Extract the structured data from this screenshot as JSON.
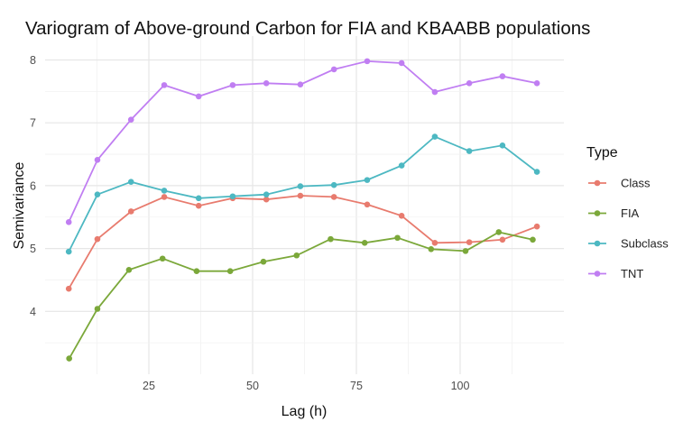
{
  "chart_data": {
    "type": "line",
    "title": "Variogram of Above-ground Carbon for FIA and KBAABB populations",
    "xlabel": "Lag (h)",
    "ylabel": "Semivariance",
    "xlim": [
      0,
      125
    ],
    "ylim": [
      3.0,
      8.38
    ],
    "xticks": [
      25,
      50,
      75,
      100
    ],
    "xtick_labels": [
      "25",
      "50",
      "75",
      "100"
    ],
    "yticks": [
      4,
      5,
      6,
      7,
      8
    ],
    "ytick_labels": [
      "4",
      "5",
      "6",
      "7",
      "8"
    ],
    "grid": true,
    "legend": {
      "title": "Type",
      "position": "right"
    },
    "series": [
      {
        "name": "Class",
        "color": "#E87B6E",
        "x": [
          5.7,
          12.6,
          20.7,
          28.7,
          37.0,
          45.2,
          53.3,
          61.5,
          69.6,
          77.6,
          85.9,
          93.9,
          102.2,
          110.2,
          118.5
        ],
        "y": [
          4.36,
          5.15,
          5.59,
          5.82,
          5.68,
          5.8,
          5.78,
          5.84,
          5.82,
          5.7,
          5.52,
          5.09,
          5.1,
          5.14,
          5.35
        ]
      },
      {
        "name": "FIA",
        "color": "#7BA83A",
        "x": [
          5.8,
          12.6,
          20.2,
          28.3,
          36.5,
          44.6,
          52.6,
          60.6,
          68.8,
          77.0,
          84.9,
          93.0,
          101.3,
          109.3,
          117.5
        ],
        "y": [
          3.25,
          4.04,
          4.66,
          4.84,
          4.64,
          4.64,
          4.79,
          4.89,
          5.15,
          5.09,
          5.17,
          4.99,
          4.96,
          5.26,
          5.14
        ]
      },
      {
        "name": "Subclass",
        "color": "#4DB8C2",
        "x": [
          5.7,
          12.6,
          20.7,
          28.7,
          37.0,
          45.2,
          53.3,
          61.5,
          69.6,
          77.6,
          85.9,
          93.9,
          102.2,
          110.2,
          118.5
        ],
        "y": [
          4.95,
          5.86,
          6.06,
          5.92,
          5.8,
          5.83,
          5.86,
          5.99,
          6.01,
          6.09,
          6.32,
          6.78,
          6.55,
          6.64,
          6.22
        ]
      },
      {
        "name": "TNT",
        "color": "#C07EF2",
        "x": [
          5.7,
          12.6,
          20.7,
          28.7,
          37.0,
          45.2,
          53.3,
          61.5,
          69.6,
          77.6,
          85.9,
          93.9,
          102.2,
          110.2,
          118.5
        ],
        "y": [
          5.42,
          6.41,
          7.05,
          7.6,
          7.42,
          7.6,
          7.63,
          7.61,
          7.85,
          7.98,
          7.95,
          7.49,
          7.63,
          7.74,
          7.63
        ]
      }
    ]
  }
}
